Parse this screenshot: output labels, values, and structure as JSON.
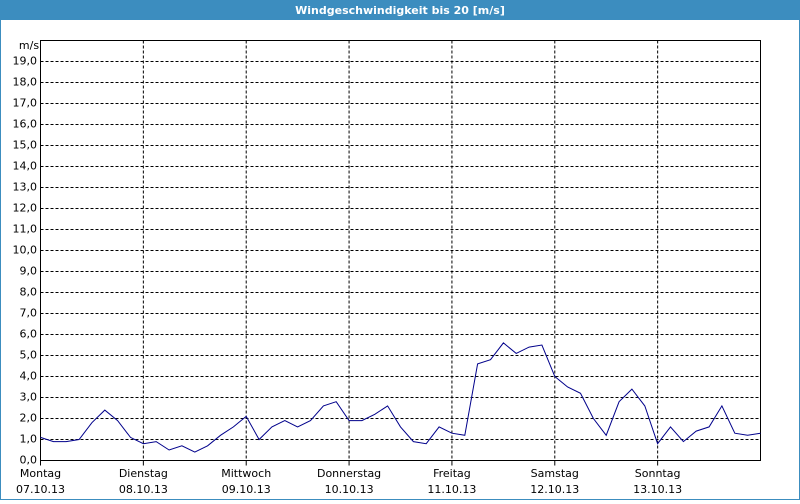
{
  "chart_data": {
    "type": "line",
    "title": "Windgeschwindigkeit bis 20 [m/s]",
    "y_unit": "m/s",
    "xlim": [
      0,
      7
    ],
    "xticks": [
      {
        "value": 0,
        "label": "Montag",
        "date": "07.10.13"
      },
      {
        "value": 1,
        "label": "Dienstag",
        "date": "08.10.13"
      },
      {
        "value": 2,
        "label": "Mittwoch",
        "date": "09.10.13"
      },
      {
        "value": 3,
        "label": "Donnerstag",
        "date": "10.10.13"
      },
      {
        "value": 4,
        "label": "Freitag",
        "date": "11.10.13"
      },
      {
        "value": 5,
        "label": "Samstag",
        "date": "12.10.13"
      },
      {
        "value": 6,
        "label": "Sonntag",
        "date": "13.10.13"
      }
    ],
    "ylim": [
      0,
      20
    ],
    "yticks": [
      {
        "value": 0,
        "label": "0,0"
      },
      {
        "value": 1,
        "label": "1,0"
      },
      {
        "value": 2,
        "label": "2,0"
      },
      {
        "value": 3,
        "label": "3,0"
      },
      {
        "value": 4,
        "label": "4,0"
      },
      {
        "value": 5,
        "label": "5,0"
      },
      {
        "value": 6,
        "label": "6,0"
      },
      {
        "value": 7,
        "label": "7,0"
      },
      {
        "value": 8,
        "label": "8,0"
      },
      {
        "value": 9,
        "label": "9,0"
      },
      {
        "value": 10,
        "label": "10,0"
      },
      {
        "value": 11,
        "label": "11,0"
      },
      {
        "value": 12,
        "label": "12,0"
      },
      {
        "value": 13,
        "label": "13,0"
      },
      {
        "value": 14,
        "label": "14,0"
      },
      {
        "value": 15,
        "label": "15,0"
      },
      {
        "value": 16,
        "label": "16,0"
      },
      {
        "value": 17,
        "label": "17,0"
      },
      {
        "value": 18,
        "label": "18,0"
      },
      {
        "value": 19,
        "label": "19,0"
      }
    ],
    "grid": true,
    "x": [
      0,
      0.125,
      0.25,
      0.375,
      0.5,
      0.625,
      0.75,
      0.875,
      1,
      1.125,
      1.25,
      1.375,
      1.5,
      1.625,
      1.75,
      1.875,
      2,
      2.125,
      2.25,
      2.375,
      2.5,
      2.625,
      2.75,
      2.875,
      3,
      3.125,
      3.25,
      3.375,
      3.5,
      3.625,
      3.75,
      3.875,
      4,
      4.125,
      4.25,
      4.375,
      4.5,
      4.625,
      4.75,
      4.875,
      5,
      5.125,
      5.25,
      5.375,
      5.5,
      5.625,
      5.75,
      5.875,
      6,
      6.125,
      6.25,
      6.375,
      6.5,
      6.625,
      6.75,
      6.875,
      7
    ],
    "series": [
      {
        "color": "#00008b",
        "values": [
          1.1,
          0.9,
          0.9,
          1.0,
          1.8,
          2.4,
          1.9,
          1.1,
          0.8,
          0.9,
          0.5,
          0.7,
          0.4,
          0.7,
          1.2,
          1.6,
          2.1,
          1.0,
          1.6,
          1.9,
          1.6,
          1.9,
          2.6,
          2.8,
          1.9,
          1.9,
          2.2,
          2.6,
          1.6,
          0.9,
          0.8,
          1.6,
          1.3,
          1.2,
          4.6,
          4.8,
          5.6,
          5.1,
          5.4,
          5.5,
          4.0,
          3.5,
          3.2,
          2.0,
          1.2,
          2.8,
          3.4,
          2.6,
          0.8,
          1.6,
          0.9,
          1.4,
          1.6,
          2.6,
          1.3,
          1.2,
          1.3
        ]
      }
    ]
  }
}
